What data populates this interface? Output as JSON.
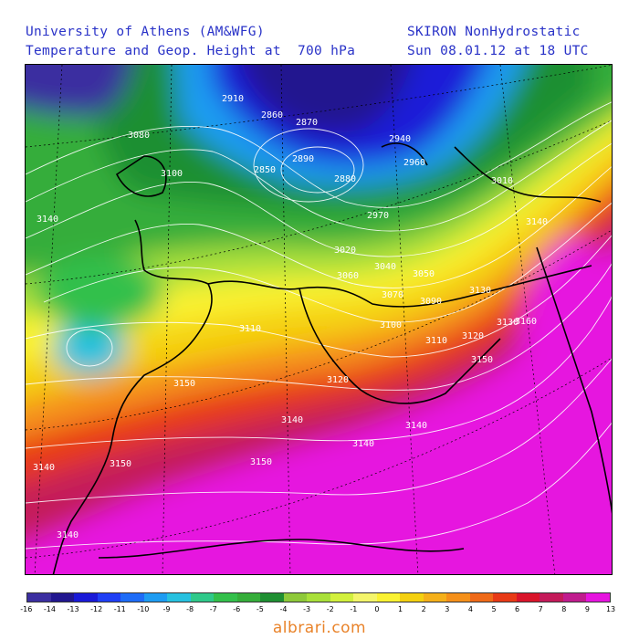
{
  "header": {
    "left_line1": "University of Athens (AM&WFG)",
    "left_line2": "Temperature and Geop. Height at  700 hPa",
    "right_line1": "SKIRON NonHydrostatic",
    "right_line2": "Sun 08.01.12 at 18 UTC"
  },
  "colorbar": {
    "labels": [
      "-16",
      "-14",
      "-13",
      "-12",
      "-11",
      "-10",
      "-9",
      "-8",
      "-7",
      "-6",
      "-5",
      "-4",
      "-3",
      "-2",
      "-1",
      "0",
      "1",
      "2",
      "3",
      "4",
      "5",
      "6",
      "7",
      "8",
      "9",
      "13"
    ],
    "colors": [
      "#3b2ea0",
      "#22178f",
      "#1a1ad8",
      "#1f3ff5",
      "#1e6cf7",
      "#1e9cf2",
      "#27c1e0",
      "#2fc98a",
      "#33c04b",
      "#35ad3a",
      "#1f8f32",
      "#8ec93a",
      "#a9e03a",
      "#d2f03d",
      "#f4f56b",
      "#faf232",
      "#f4d010",
      "#f5b01a",
      "#f5901a",
      "#ef6a18",
      "#e83a16",
      "#d9142a",
      "#c41a5a",
      "#c01c8e",
      "#e614df"
    ]
  },
  "contour_labels": [
    "2910",
    "2860",
    "2870",
    "2940",
    "2960",
    "3010",
    "3080",
    "3100",
    "3140",
    "2850",
    "2890",
    "2880",
    "2970",
    "3020",
    "3040",
    "3130",
    "3050",
    "3060",
    "3070",
    "3090",
    "3100",
    "3110",
    "3120",
    "3130",
    "3140",
    "3150",
    "3160",
    "3110",
    "3120",
    "3140",
    "3150",
    "3140",
    "3140",
    "3150",
    "3140",
    "3150",
    "3140"
  ],
  "watermark": "albrari.com"
}
